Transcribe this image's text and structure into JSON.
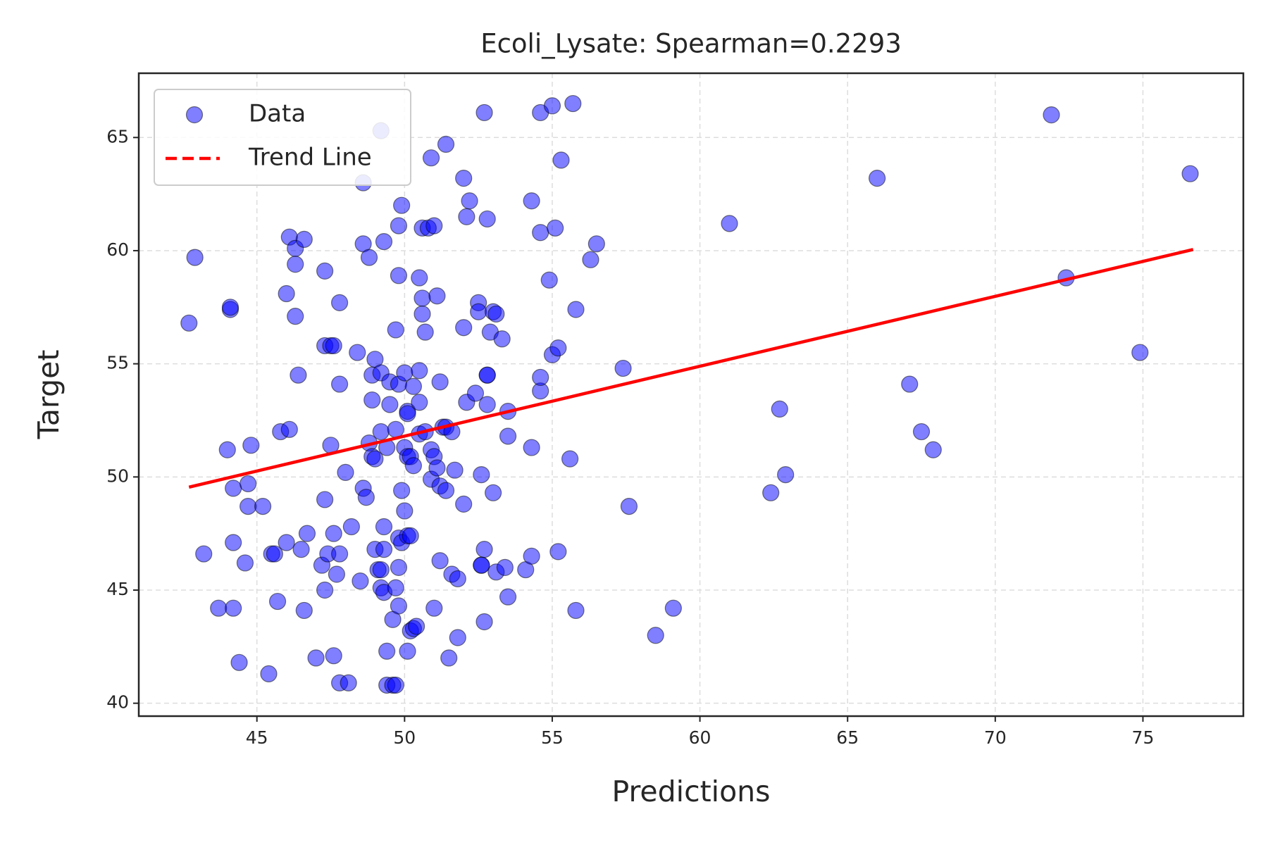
{
  "chart_data": {
    "type": "scatter",
    "title": "Ecoli_Lysate: Spearman=0.2293",
    "xlabel": "Predictions",
    "ylabel": "Target",
    "xlim": [
      41.0,
      78.4
    ],
    "ylim": [
      39.43,
      67.84
    ],
    "xticks": [
      45,
      50,
      55,
      60,
      65,
      70,
      75
    ],
    "yticks": [
      40,
      45,
      50,
      55,
      60,
      65
    ],
    "grid": true,
    "legend": "upper left",
    "series": [
      {
        "name": "Data",
        "color": "#0000ff",
        "x": [
          42.7,
          42.9,
          43.2,
          43.7,
          44.0,
          44.1,
          44.1,
          44.2,
          44.2,
          44.2,
          44.4,
          44.6,
          44.7,
          44.7,
          44.8,
          45.2,
          45.4,
          45.5,
          45.6,
          45.7,
          45.8,
          46.0,
          46.0,
          46.1,
          46.1,
          46.3,
          46.3,
          46.3,
          46.4,
          46.5,
          46.6,
          46.6,
          46.7,
          47.0,
          47.2,
          47.3,
          47.3,
          47.3,
          47.3,
          47.4,
          47.5,
          47.5,
          47.6,
          47.6,
          47.6,
          47.7,
          47.8,
          47.8,
          47.8,
          47.8,
          48.0,
          48.1,
          48.2,
          48.4,
          48.5,
          48.6,
          48.6,
          48.6,
          48.7,
          48.8,
          48.8,
          48.9,
          48.9,
          48.9,
          49.0,
          49.0,
          49.0,
          49.1,
          49.2,
          49.2,
          49.2,
          49.2,
          49.2,
          49.3,
          49.3,
          49.3,
          49.3,
          49.4,
          49.4,
          49.4,
          49.5,
          49.5,
          49.6,
          49.6,
          49.7,
          49.7,
          49.7,
          49.7,
          49.8,
          49.8,
          49.8,
          49.8,
          49.8,
          49.8,
          49.9,
          49.9,
          49.9,
          50.0,
          50.0,
          50.0,
          50.1,
          50.1,
          50.1,
          50.1,
          50.1,
          50.2,
          50.2,
          50.2,
          50.3,
          50.3,
          50.3,
          50.4,
          50.5,
          50.5,
          50.5,
          50.5,
          50.6,
          50.6,
          50.6,
          50.7,
          50.7,
          50.8,
          50.9,
          50.9,
          50.9,
          51.0,
          51.0,
          51.0,
          51.1,
          51.1,
          51.2,
          51.2,
          51.2,
          51.3,
          51.4,
          51.4,
          51.4,
          51.5,
          51.6,
          51.6,
          51.7,
          51.8,
          51.8,
          52.0,
          52.0,
          52.0,
          52.1,
          52.1,
          52.2,
          52.4,
          52.5,
          52.5,
          52.6,
          52.6,
          52.6,
          52.7,
          52.7,
          52.7,
          52.8,
          52.8,
          52.8,
          52.8,
          52.9,
          53.0,
          53.0,
          53.1,
          53.1,
          53.3,
          53.4,
          53.5,
          53.5,
          53.5,
          54.1,
          54.3,
          54.3,
          54.3,
          54.6,
          54.6,
          54.6,
          54.6,
          54.9,
          55.0,
          55.0,
          55.1,
          55.2,
          55.2,
          55.3,
          55.6,
          55.7,
          55.8,
          55.8,
          56.3,
          56.5,
          57.4,
          57.6,
          58.5,
          59.1,
          61.0,
          62.4,
          62.7,
          62.9,
          66.0,
          67.1,
          67.5,
          67.9,
          71.9,
          72.4,
          74.9,
          76.6
        ],
        "values": [
          56.8,
          59.7,
          46.6,
          44.2,
          51.2,
          57.4,
          57.5,
          44.2,
          49.5,
          47.1,
          41.8,
          46.2,
          49.7,
          48.7,
          51.4,
          48.7,
          41.3,
          46.6,
          46.6,
          44.5,
          52.0,
          58.1,
          47.1,
          52.1,
          60.6,
          60.1,
          57.1,
          59.4,
          54.5,
          46.8,
          44.1,
          60.5,
          47.5,
          42.0,
          46.1,
          49.0,
          45.0,
          59.1,
          55.8,
          46.6,
          55.8,
          51.4,
          47.5,
          42.1,
          55.8,
          45.7,
          46.6,
          54.1,
          57.7,
          40.9,
          50.2,
          40.9,
          47.8,
          55.5,
          45.4,
          49.5,
          60.3,
          63.0,
          49.1,
          59.7,
          51.5,
          53.4,
          54.5,
          50.9,
          50.8,
          46.8,
          55.2,
          45.9,
          65.3,
          45.9,
          45.1,
          54.6,
          52.0,
          47.8,
          46.8,
          60.4,
          44.9,
          51.3,
          42.3,
          40.8,
          53.2,
          54.2,
          43.7,
          40.8,
          45.1,
          40.8,
          52.1,
          56.5,
          54.1,
          58.9,
          61.1,
          46.0,
          47.3,
          44.3,
          62.0,
          47.1,
          49.4,
          48.5,
          54.6,
          51.3,
          50.9,
          47.4,
          52.9,
          42.3,
          52.8,
          43.2,
          47.4,
          50.9,
          43.3,
          50.5,
          54.0,
          43.4,
          58.8,
          53.3,
          51.9,
          54.7,
          57.2,
          61.0,
          57.9,
          52.0,
          56.4,
          61.0,
          64.1,
          49.9,
          51.2,
          44.2,
          50.9,
          61.1,
          50.4,
          58.0,
          49.6,
          54.2,
          46.3,
          52.2,
          64.7,
          49.4,
          52.2,
          42.0,
          52.0,
          45.7,
          50.3,
          45.5,
          42.9,
          56.6,
          63.2,
          48.8,
          53.3,
          61.5,
          62.2,
          53.7,
          57.7,
          57.3,
          50.1,
          46.1,
          46.1,
          46.8,
          66.1,
          43.6,
          53.2,
          61.4,
          54.5,
          54.5,
          56.4,
          49.3,
          57.3,
          57.2,
          45.8,
          56.1,
          46.0,
          51.8,
          52.9,
          44.7,
          45.9,
          51.3,
          46.5,
          62.2,
          53.8,
          54.4,
          66.1,
          60.8,
          58.7,
          66.4,
          55.4,
          61.0,
          55.7,
          46.7,
          64.0,
          50.8,
          66.5,
          57.4,
          44.1,
          59.6,
          60.3,
          54.8,
          48.7,
          43.0,
          44.2,
          61.2,
          49.3,
          53.0,
          50.1,
          63.2,
          54.1,
          52.0,
          51.2,
          66.0,
          58.8,
          55.5,
          63.4
        ]
      },
      {
        "name": "Trend Line",
        "color": "#ff0000",
        "x": [
          42.7,
          76.7
        ],
        "values": [
          49.55,
          60.05
        ]
      }
    ]
  }
}
